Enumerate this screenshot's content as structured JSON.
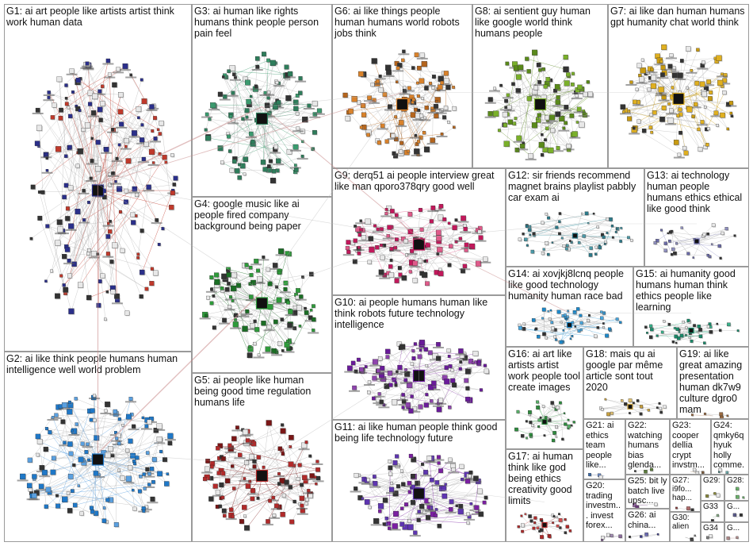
{
  "groups": [
    {
      "id": "G1",
      "label": "G1: ai art people like artists artist think work human data",
      "color": "#2b2f8a",
      "alt": "#c0392b",
      "nodes": 190
    },
    {
      "id": "G2",
      "label": "G2: ai like think people humans human intelligence well world problem",
      "color": "#1f78c8",
      "alt": "#5aa0e0",
      "nodes": 140
    },
    {
      "id": "G3",
      "label": "G3: ai human like rights humans think people person pain feel",
      "color": "#2e7d5b",
      "alt": "#3a9a6e",
      "nodes": 110
    },
    {
      "id": "G4",
      "label": "G4: google music like ai people fired company background being paper",
      "color": "#2e9b3a",
      "alt": "#1b6e25",
      "nodes": 110
    },
    {
      "id": "G5",
      "label": "G5: ai people like human being good time regulation humans life",
      "color": "#b22a2a",
      "alt": "#7a1616",
      "nodes": 110
    },
    {
      "id": "G6",
      "label": "G6: ai like things people human humans world robots jobs think",
      "color": "#d9822b",
      "alt": "#b5651d",
      "nodes": 110
    },
    {
      "id": "G7",
      "label": "G7: ai like dan human humans gpt humanity chat world think",
      "color": "#e0b020",
      "alt": "#c89a10",
      "nodes": 110
    },
    {
      "id": "G8",
      "label": "G8: ai sentient guy human like google world think humans people",
      "color": "#7ab02a",
      "alt": "#5a8a1a",
      "nodes": 100
    },
    {
      "id": "G9",
      "label": "G9: derq51 ai people interview great like man qporo378qry good well",
      "color": "#c2185b",
      "alt": "#e05a8a",
      "nodes": 110
    },
    {
      "id": "G10",
      "label": "G10: ai people humans human like think robots future technology intelligence",
      "color": "#6a1b9a",
      "alt": "#8e44ad",
      "nodes": 110
    },
    {
      "id": "G11",
      "label": "G11: ai like human people think good being life technology future",
      "color": "#5e35b1",
      "alt": "#7b1fa2",
      "nodes": 110
    },
    {
      "id": "G12",
      "label": "G12: sir friends recommend magnet brains playlist pabbly car exam ai",
      "color": "#2c7a8a",
      "alt": "#4a9aa8",
      "nodes": 60
    },
    {
      "id": "G13",
      "label": "G13: ai technology human people humans ethics ethical like good think",
      "color": "#6a6aa8",
      "alt": "#9090c0",
      "nodes": 30
    },
    {
      "id": "G14",
      "label": "G14: ai xovjkj8lcnq people like good technology humanity human race bad",
      "color": "#1e88c8",
      "alt": "#4aa8e0",
      "nodes": 60
    },
    {
      "id": "G15",
      "label": "G15: ai humanity good humans human think ethics people like learning",
      "color": "#1a8a6a",
      "alt": "#3ab08a",
      "nodes": 40
    },
    {
      "id": "G16",
      "label": "G16: ai art like artists artist work people tool create images",
      "color": "#2e8b3e",
      "alt": "#58b068",
      "nodes": 40
    },
    {
      "id": "G17",
      "label": "G17: ai human think like god being ethics creativity good limits",
      "color": "#b02a2a",
      "alt": "#d05050",
      "nodes": 30
    },
    {
      "id": "G18",
      "label": "G18: mais qu ai google par même article sont tout 2020",
      "color": "#c8a040",
      "alt": "#e0c070",
      "nodes": 20
    },
    {
      "id": "G19",
      "label": "G19: ai like great amazing presentation human dk7w9 culture dgro0 mam",
      "color": "#9a6a40",
      "alt": "#c09070",
      "nodes": 8
    },
    {
      "id": "G20",
      "label": "G20: trading investm... invest forex...",
      "color": "#8a6a9a",
      "alt": "#a08ab0",
      "nodes": 6
    },
    {
      "id": "G21",
      "label": "G21: ai ethics team people like...",
      "color": "#3a6aa8",
      "alt": "#6a8ac8",
      "nodes": 6
    },
    {
      "id": "G22",
      "label": "G22: watching humans bias glenda...",
      "color": "#5a7a3a",
      "alt": "#8aa86a",
      "nodes": 5
    },
    {
      "id": "G23",
      "label": "G23: cooper dellia crypt invstm...",
      "color": "#7a5a3a",
      "alt": "#a88a6a",
      "nodes": 5
    },
    {
      "id": "G24",
      "label": "G24: qmky6q hyuk holly comme...",
      "color": "#3a7a7a",
      "alt": "#6aa8a8",
      "nodes": 5
    },
    {
      "id": "G25",
      "label": "G25: bit ly batch live upsc...",
      "color": "#6a3a7a",
      "alt": "#9a6aa8",
      "nodes": 5
    },
    {
      "id": "G26",
      "label": "G26: ai china...",
      "color": "#3a3a8a",
      "alt": "#6a6ab0",
      "nodes": 4
    },
    {
      "id": "G27",
      "label": "G27: i9fo... hap...",
      "color": "#8a3a3a",
      "alt": "#b06a6a",
      "nodes": 3
    },
    {
      "id": "G28",
      "label": "G28:",
      "color": "#3a8a3a",
      "alt": "#6ab06a",
      "nodes": 3
    },
    {
      "id": "G29",
      "label": "G29:",
      "color": "#8a8a3a",
      "alt": "#b0b06a",
      "nodes": 3
    },
    {
      "id": "G30",
      "label": "G30: alien",
      "color": "#4a4a4a",
      "alt": "#7a7a7a",
      "nodes": 3
    },
    {
      "id": "G31",
      "label": "G...",
      "color": "#5a5a8a",
      "alt": "#8a8ab0",
      "nodes": 2
    },
    {
      "id": "G32",
      "label": "G...",
      "color": "#8a5a5a",
      "alt": "#b08a8a",
      "nodes": 2
    },
    {
      "id": "G33",
      "label": "G33",
      "color": "#5a8a5a",
      "alt": "#8ab08a",
      "nodes": 2
    },
    {
      "id": "G34",
      "label": "G34",
      "color": "#7a7a7a",
      "alt": "#a0a0a0",
      "nodes": 2
    }
  ]
}
